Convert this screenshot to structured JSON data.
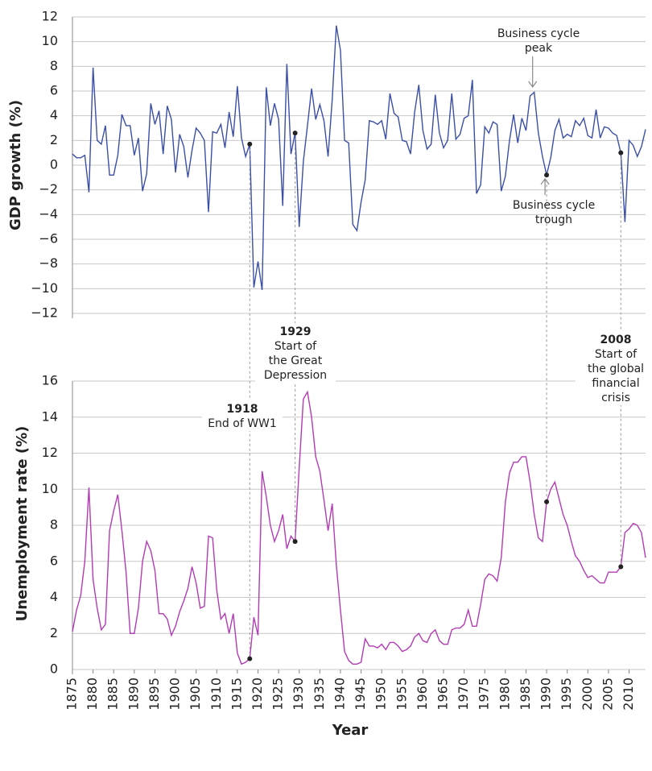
{
  "chart_data": [
    {
      "type": "line",
      "ylabel": "GDP growth (%)",
      "color": "#3b4fa6",
      "x": [
        1875,
        1876,
        1877,
        1878,
        1879,
        1880,
        1881,
        1882,
        1883,
        1884,
        1885,
        1886,
        1887,
        1888,
        1889,
        1890,
        1891,
        1892,
        1893,
        1894,
        1895,
        1896,
        1897,
        1898,
        1899,
        1900,
        1901,
        1902,
        1903,
        1904,
        1905,
        1906,
        1907,
        1908,
        1909,
        1910,
        1911,
        1912,
        1913,
        1914,
        1915,
        1916,
        1917,
        1918,
        1919,
        1920,
        1921,
        1922,
        1923,
        1924,
        1925,
        1926,
        1927,
        1928,
        1929,
        1930,
        1931,
        1932,
        1933,
        1934,
        1935,
        1936,
        1937,
        1938,
        1939,
        1940,
        1941,
        1942,
        1943,
        1944,
        1945,
        1946,
        1947,
        1948,
        1949,
        1950,
        1951,
        1952,
        1953,
        1954,
        1955,
        1956,
        1957,
        1958,
        1959,
        1960,
        1961,
        1962,
        1963,
        1964,
        1965,
        1966,
        1967,
        1968,
        1969,
        1970,
        1971,
        1972,
        1973,
        1974,
        1975,
        1976,
        1977,
        1978,
        1979,
        1980,
        1981,
        1982,
        1983,
        1984,
        1985,
        1986,
        1987,
        1988,
        1989,
        1990,
        1991,
        1992,
        1993,
        1994,
        1995,
        1996,
        1997,
        1998,
        1999,
        2000,
        2001,
        2002,
        2003,
        2004,
        2005,
        2006,
        2007,
        2008,
        2009,
        2010,
        2011,
        2012,
        2013,
        2014
      ],
      "values": [
        0.9,
        0.6,
        0.6,
        0.8,
        -2.2,
        7.9,
        2.0,
        1.7,
        3.2,
        -0.8,
        -0.8,
        0.8,
        4.1,
        3.2,
        3.2,
        0.8,
        2.2,
        -2.1,
        -0.7,
        5.0,
        3.3,
        4.4,
        0.9,
        4.8,
        3.7,
        -0.6,
        2.5,
        1.5,
        -1.0,
        1.2,
        3.0,
        2.6,
        2.0,
        -3.8,
        2.7,
        2.6,
        3.3,
        1.4,
        4.3,
        2.3,
        6.4,
        2.2,
        0.7,
        1.7,
        -9.9,
        -7.8,
        -10.1,
        6.3,
        3.2,
        5.0,
        3.7,
        -3.3,
        8.2,
        0.9,
        2.6,
        -5.0,
        0.3,
        3.2,
        6.2,
        3.7,
        4.9,
        3.6,
        0.7,
        5.3,
        11.3,
        9.3,
        2.0,
        1.8,
        -4.8,
        -5.3,
        -3.0,
        -1.2,
        3.6,
        3.5,
        3.3,
        3.6,
        2.1,
        5.8,
        4.2,
        3.9,
        2.0,
        1.9,
        0.9,
        4.3,
        6.5,
        2.8,
        1.3,
        1.7,
        5.7,
        2.6,
        1.4,
        2.0,
        5.8,
        2.1,
        2.5,
        3.8,
        4.0,
        6.9,
        -2.3,
        -1.6,
        3.1,
        2.6,
        3.5,
        3.3,
        -2.1,
        -0.9,
        2.0,
        4.1,
        1.8,
        3.8,
        2.8,
        5.6,
        5.9,
        2.6,
        0.7,
        -0.8,
        0.6,
        2.8,
        3.7,
        2.2,
        2.5,
        2.3,
        3.6,
        3.2,
        3.8,
        2.4,
        2.2,
        4.5,
        2.2,
        3.1,
        3.0,
        2.6,
        2.4,
        1.0,
        -4.6,
        2.0,
        1.6,
        0.7,
        1.5,
        2.9
      ],
      "xlim": [
        1875,
        2014
      ],
      "ylim": [
        -12,
        12
      ],
      "yticks": [
        {
          "value": -12,
          "label": "−12"
        },
        {
          "value": -10,
          "label": "−10"
        },
        {
          "value": -8,
          "label": "−8"
        },
        {
          "value": -6,
          "label": "−6"
        },
        {
          "value": -4,
          "label": "−4"
        },
        {
          "value": -2,
          "label": "−2"
        },
        0,
        2,
        4,
        6,
        8,
        10,
        12
      ],
      "grid": true,
      "annotations": [
        {
          "x": 1987,
          "text": [
            "Business cycle",
            "peak"
          ]
        },
        {
          "x": 1990,
          "text": [
            "Business cycle",
            "trough"
          ]
        }
      ]
    },
    {
      "type": "line",
      "ylabel": "Unemployment rate (%)",
      "xlabel": "Year",
      "color": "#b33bb5",
      "x": [
        1875,
        1876,
        1877,
        1878,
        1879,
        1880,
        1881,
        1882,
        1883,
        1884,
        1885,
        1886,
        1887,
        1888,
        1889,
        1890,
        1891,
        1892,
        1893,
        1894,
        1895,
        1896,
        1897,
        1898,
        1899,
        1900,
        1901,
        1902,
        1903,
        1904,
        1905,
        1906,
        1907,
        1908,
        1909,
        1910,
        1911,
        1912,
        1913,
        1914,
        1915,
        1916,
        1917,
        1918,
        1919,
        1920,
        1921,
        1922,
        1923,
        1924,
        1925,
        1926,
        1927,
        1928,
        1929,
        1930,
        1931,
        1932,
        1933,
        1934,
        1935,
        1936,
        1937,
        1938,
        1939,
        1940,
        1941,
        1942,
        1943,
        1944,
        1945,
        1946,
        1947,
        1948,
        1949,
        1950,
        1951,
        1952,
        1953,
        1954,
        1955,
        1956,
        1957,
        1958,
        1959,
        1960,
        1961,
        1962,
        1963,
        1964,
        1965,
        1966,
        1967,
        1968,
        1969,
        1970,
        1971,
        1972,
        1973,
        1974,
        1975,
        1976,
        1977,
        1978,
        1979,
        1980,
        1981,
        1982,
        1983,
        1984,
        1985,
        1986,
        1987,
        1988,
        1989,
        1990,
        1991,
        1992,
        1993,
        1994,
        1995,
        1996,
        1997,
        1998,
        1999,
        2000,
        2001,
        2002,
        2003,
        2004,
        2005,
        2006,
        2007,
        2008,
        2009,
        2010,
        2011,
        2012,
        2013,
        2014
      ],
      "values": [
        2.1,
        3.3,
        4.1,
        6.0,
        10.1,
        5.0,
        3.4,
        2.2,
        2.5,
        7.7,
        8.8,
        9.7,
        7.7,
        5.4,
        2.0,
        2.0,
        3.4,
        6.0,
        7.1,
        6.6,
        5.5,
        3.1,
        3.1,
        2.8,
        1.9,
        2.4,
        3.2,
        3.8,
        4.5,
        5.7,
        4.8,
        3.4,
        3.5,
        7.4,
        7.3,
        4.4,
        2.8,
        3.1,
        2.0,
        3.1,
        0.9,
        0.3,
        0.4,
        0.6,
        2.9,
        1.9,
        11.0,
        9.6,
        8.0,
        7.1,
        7.7,
        8.6,
        6.7,
        7.4,
        7.1,
        11.2,
        15.0,
        15.4,
        14.0,
        11.8,
        11.0,
        9.4,
        7.7,
        9.2,
        5.8,
        3.3,
        1.0,
        0.5,
        0.3,
        0.3,
        0.4,
        1.7,
        1.3,
        1.3,
        1.2,
        1.4,
        1.1,
        1.5,
        1.5,
        1.3,
        1.0,
        1.1,
        1.3,
        1.8,
        2.0,
        1.6,
        1.5,
        2.0,
        2.2,
        1.6,
        1.4,
        1.4,
        2.2,
        2.3,
        2.3,
        2.5,
        3.3,
        2.4,
        2.4,
        3.6,
        5.0,
        5.3,
        5.2,
        4.9,
        6.2,
        9.3,
        10.9,
        11.5,
        11.5,
        11.8,
        11.8,
        10.4,
        8.6,
        7.3,
        7.1,
        9.3,
        10.0,
        10.4,
        9.5,
        8.6,
        8.0,
        7.1,
        6.3,
        6.0,
        5.5,
        5.1,
        5.2,
        5.0,
        4.8,
        4.8,
        5.4,
        5.4,
        5.4,
        5.7,
        7.6,
        7.8,
        8.1,
        8.0,
        7.6,
        6.2
      ],
      "xlim": [
        1875,
        2014
      ],
      "xticks": [
        1875,
        1880,
        1885,
        1890,
        1895,
        1900,
        1905,
        1910,
        1915,
        1920,
        1925,
        1930,
        1935,
        1940,
        1945,
        1950,
        1955,
        1960,
        1965,
        1970,
        1975,
        1980,
        1985,
        1990,
        1995,
        2000,
        2005,
        2010
      ],
      "ylim": [
        0,
        16
      ],
      "yticks": [
        0,
        2,
        4,
        6,
        8,
        10,
        12,
        14,
        16
      ],
      "grid": true,
      "events": [
        {
          "x": 1918,
          "text": [
            "End of WW1"
          ]
        },
        {
          "x": 1929,
          "text": [
            "Start of",
            "the Great",
            "Depression"
          ]
        },
        {
          "x": 1990,
          "text": []
        },
        {
          "x": 2008,
          "text": [
            "Start of",
            "the global",
            "financial",
            "crisis"
          ]
        }
      ]
    }
  ]
}
